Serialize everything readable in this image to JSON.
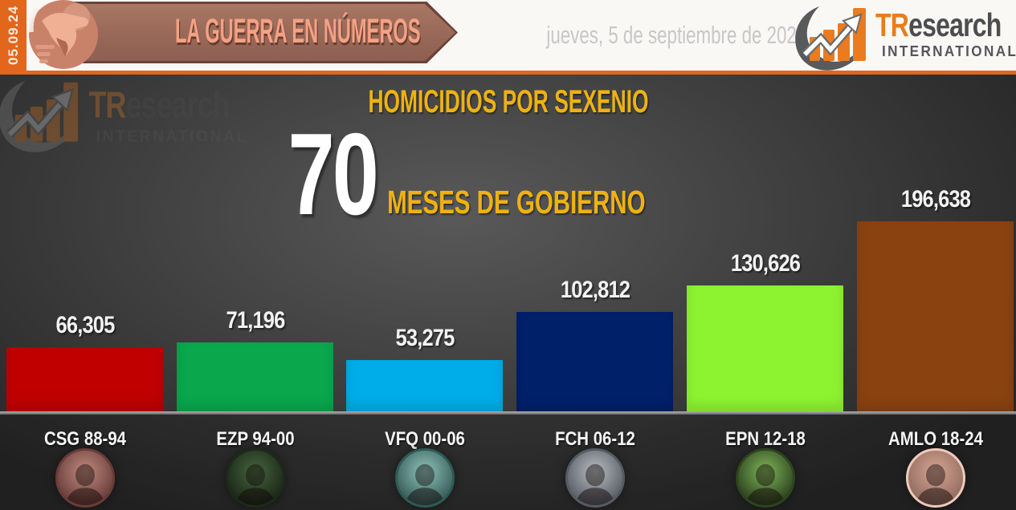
{
  "date_strip": {
    "date": "05.09.24"
  },
  "header": {
    "banner_title": "LA GUERRA EN NÚMEROS",
    "date_line": "jueves, 5 de septiembre de 2024",
    "brand": {
      "tr": "TR",
      "rest": "esearch",
      "subtitle": "INTERNATIONAL"
    }
  },
  "colors": {
    "accent_orange": "#e2661c",
    "brand_orange": "#e87d1e",
    "title_yellow": "#eeb211",
    "banner_fill": "#986858",
    "banner_text": "#f5a184"
  },
  "chart_data": {
    "type": "bar",
    "title": "HOMICIDIOS POR SEXENIO",
    "big_number": "70",
    "big_number_label": "MESES DE GOBIERNO",
    "categories": [
      "CSG 88-94",
      "EZP 94-00",
      "VFQ 00-06",
      "FCH 06-12",
      "EPN 12-18",
      "AMLO 18-24"
    ],
    "values": [
      66305,
      71196,
      53275,
      102812,
      130626,
      196638
    ],
    "bar_colors": [
      "#c00000",
      "#0aa74d",
      "#00ade9",
      "#01206a",
      "#8df331",
      "#8a4211"
    ],
    "value_label_color": "#f2f2f2",
    "xlabel": "",
    "ylabel": "",
    "ylim": [
      0,
      196638
    ],
    "grid": false,
    "legend_position": "none"
  },
  "avatars": [
    {
      "tint_inner": "#c18a7f",
      "tint_outer": "#4e2626",
      "ring": "#6b3b38"
    },
    {
      "tint_inner": "#47663f",
      "tint_outer": "#0c130b",
      "ring": "#1d2a1a"
    },
    {
      "tint_inner": "#8fc4bb",
      "tint_outer": "#1d3c3a",
      "ring": "#2e5a55"
    },
    {
      "tint_inner": "#b9bdc3",
      "tint_outer": "#3a3f47",
      "ring": "#555b64"
    },
    {
      "tint_inner": "#7fb558",
      "tint_outer": "#141f0e",
      "ring": "#2c441f"
    },
    {
      "tint_inner": "#d8a593",
      "tint_outer": "#7a5a50",
      "ring": "#efcabb"
    }
  ]
}
